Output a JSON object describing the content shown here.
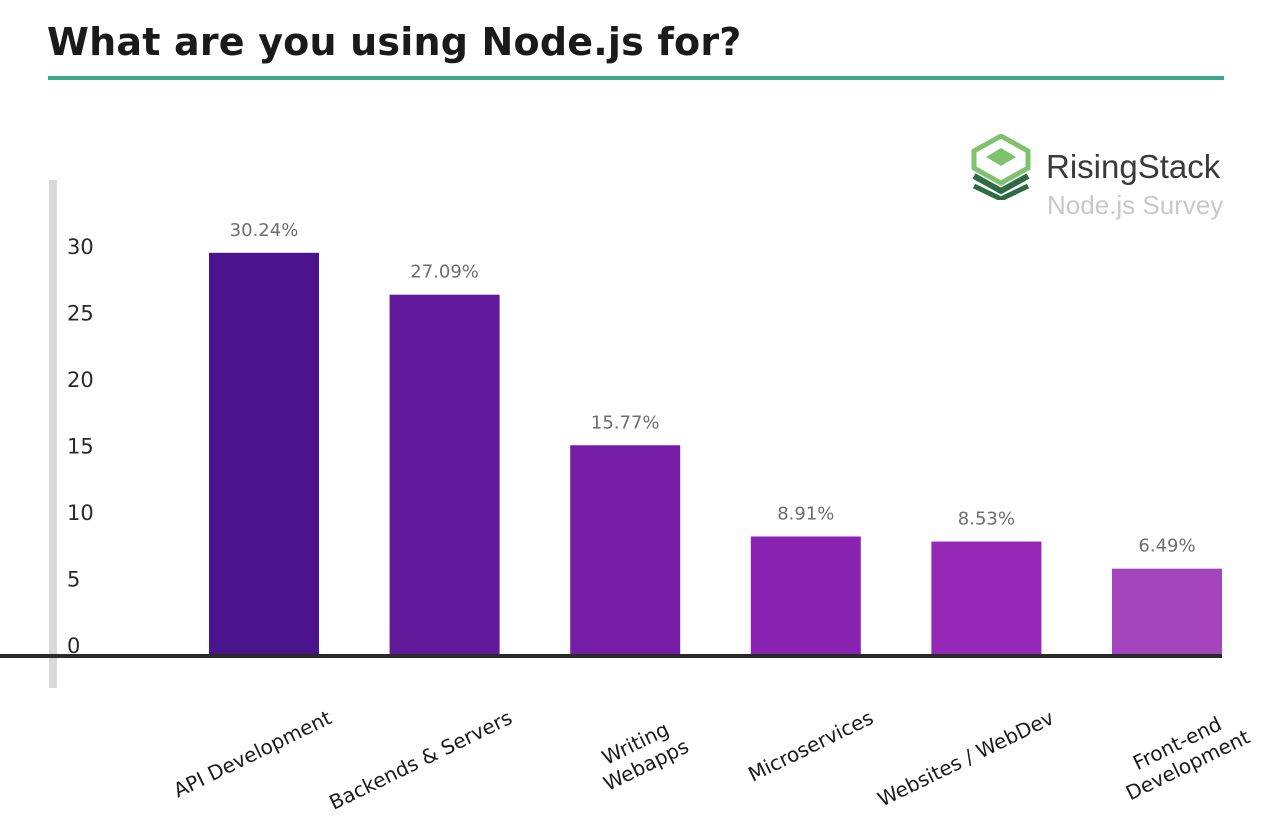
{
  "title": "What are you using Node.js for?",
  "brand": {
    "name": "RisingStack",
    "subtitle": "Node.js Survey",
    "logo_icon": "risingstack-logo-icon"
  },
  "colors": {
    "title_rule": "#3aa88e",
    "axis_line": "#2a2a2a",
    "y_axis_bar": "#d9d9d9",
    "bars": [
      "#4a148c",
      "#621a9b",
      "#761da5",
      "#8a22b2",
      "#9427b5",
      "#a445be"
    ],
    "logo_green_dark": "#2e6b43",
    "logo_green_light": "#7fc26d"
  },
  "chart_data": {
    "type": "bar",
    "title": "What are you using Node.js for?",
    "categories": [
      "API Development",
      "Backends & Servers",
      "Writing Webapps",
      "Microservices",
      "Websites / WebDev",
      "Front-end Development"
    ],
    "category_lines": [
      [
        "API Development"
      ],
      [
        "Backends & Servers"
      ],
      [
        "Writing",
        "Webapps"
      ],
      [
        "Microservices"
      ],
      [
        "Websites / WebDev"
      ],
      [
        "Front-end",
        "Development"
      ]
    ],
    "values": [
      30.24,
      27.09,
      15.77,
      8.91,
      8.53,
      6.49
    ],
    "value_labels": [
      "30.24%",
      "27.09%",
      "15.77%",
      "8.91%",
      "8.53%",
      "6.49%"
    ],
    "yticks": [
      0,
      5,
      10,
      15,
      20,
      25,
      30
    ],
    "ylim": [
      0,
      35
    ],
    "xlabel": "",
    "ylabel": "",
    "grid": false,
    "legend": "none"
  }
}
